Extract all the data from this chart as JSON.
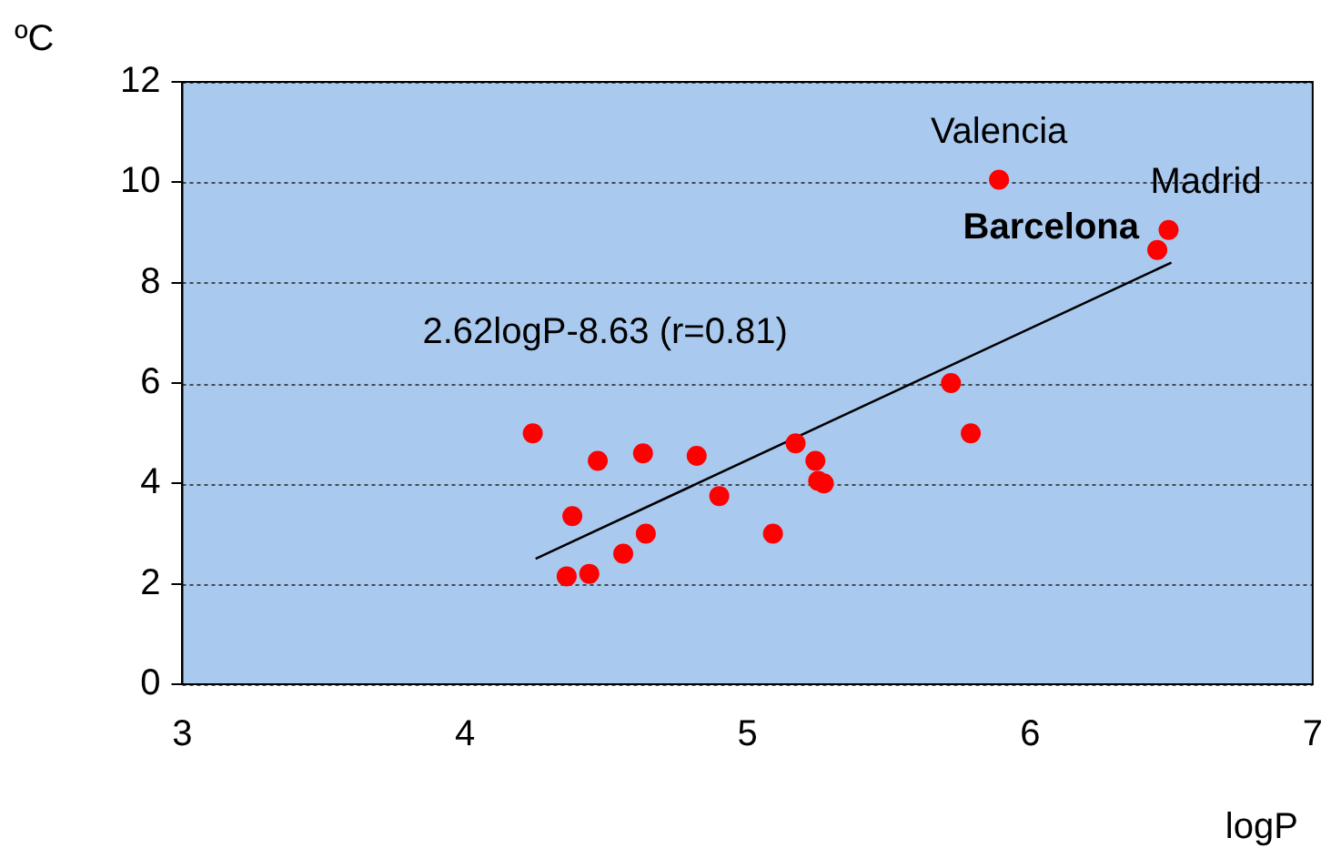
{
  "chart_data": {
    "type": "scatter",
    "xlabel": "logP",
    "ylabel": "ºC",
    "x": [
      4.24,
      4.38,
      4.47,
      4.63,
      4.82,
      4.36,
      4.44,
      4.56,
      4.64,
      4.9,
      5.09,
      5.17,
      5.24,
      5.25,
      5.27,
      5.72,
      5.79,
      5.89,
      6.45,
      6.49
    ],
    "series": [
      {
        "color": "#ff0000",
        "marker": "circle",
        "values": [
          5.0,
          3.35,
          4.45,
          4.6,
          4.55,
          2.15,
          2.2,
          2.6,
          3.0,
          3.75,
          3.0,
          4.8,
          4.45,
          4.05,
          4.0,
          6.0,
          5.0,
          10.05,
          8.65,
          9.05
        ]
      },
      {
        "type": "line",
        "color": "#000000",
        "x": [
          4.25,
          6.5
        ],
        "values": [
          2.5,
          8.4
        ]
      }
    ],
    "xlim": [
      3,
      7
    ],
    "xticks": [
      3,
      4,
      5,
      6,
      7
    ],
    "ylim": [
      0,
      12
    ],
    "yticks": [
      0,
      2,
      4,
      6,
      8,
      10,
      12
    ],
    "grid": "y",
    "legend": false,
    "annotations": [
      {
        "text": "Valencia",
        "x": 5.89,
        "y": 10.05
      },
      {
        "text": "Madrid",
        "x": 6.49,
        "y": 9.05
      },
      {
        "text": "Barcelona",
        "x": 6.45,
        "y": 8.65
      },
      "2.62logP-8.63 (r=0.81)"
    ]
  }
}
